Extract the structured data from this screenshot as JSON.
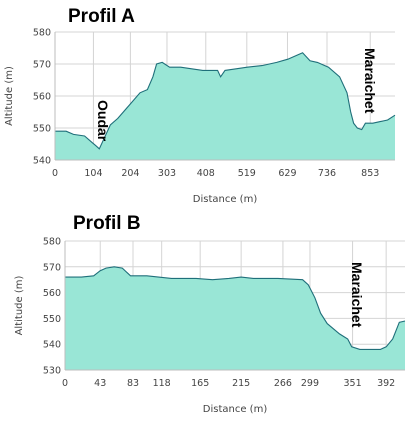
{
  "colors": {
    "fill": "#99e6d6",
    "line": "#1f6f7a",
    "grid": "#d4d4d4"
  },
  "chart_data": [
    {
      "type": "area",
      "title": "Profil A",
      "xlabel": "Distance (m)",
      "ylabel": "Altitude (m)",
      "xlim": [
        0,
        920
      ],
      "ylim": [
        540,
        580
      ],
      "yticks": [
        540,
        550,
        560,
        570,
        580
      ],
      "xticks": [
        0,
        104,
        204,
        303,
        408,
        519,
        629,
        736,
        853
      ],
      "xtick_labels": [
        "0",
        "104",
        "204",
        "303",
        "408",
        "519",
        "629",
        "736",
        "853"
      ],
      "grid": true,
      "annotations": [
        {
          "text": "Oudar",
          "x": 120,
          "y": 555
        },
        {
          "text": "Maraichet",
          "x": 830,
          "y": 568
        }
      ],
      "series": [
        {
          "x": [
            0,
            30,
            50,
            80,
            100,
            110,
            120,
            130,
            150,
            170,
            200,
            230,
            250,
            265,
            275,
            290,
            310,
            340,
            370,
            400,
            430,
            440,
            448,
            460,
            490,
            520,
            560,
            600,
            630,
            660,
            670,
            690,
            710,
            740,
            770,
            790,
            800,
            808,
            818,
            830,
            840,
            860,
            880,
            900,
            920
          ],
          "y": [
            549,
            549,
            548,
            547.5,
            545.5,
            544.5,
            543.5,
            546,
            551,
            553,
            557,
            561,
            562,
            566,
            570,
            570.5,
            569,
            569,
            568.5,
            568,
            568,
            568,
            566,
            568,
            568.5,
            569,
            569.5,
            570.5,
            571.5,
            573,
            573.5,
            571,
            570.5,
            569,
            566,
            561,
            555,
            551.5,
            550,
            549.5,
            551.5,
            551.5,
            552,
            552.5,
            554
          ]
        }
      ]
    },
    {
      "type": "area",
      "title": "Profil B",
      "xlabel": "Distance (m)",
      "ylabel": "Altitude (m)",
      "xlim": [
        0,
        415
      ],
      "ylim": [
        530,
        580
      ],
      "yticks": [
        530,
        540,
        550,
        560,
        570,
        580
      ],
      "xticks": [
        0,
        43,
        83,
        118,
        165,
        215,
        266,
        299,
        351,
        392
      ],
      "xtick_labels": [
        "0",
        "43",
        "83",
        "118",
        "165",
        "215",
        "266",
        "299",
        "351",
        "392"
      ],
      "grid": true,
      "annotations": [
        {
          "text": "Maraichet",
          "x": 370,
          "y": 560
        }
      ],
      "series": [
        {
          "x": [
            0,
            20,
            35,
            43,
            50,
            60,
            70,
            80,
            100,
            130,
            160,
            180,
            200,
            215,
            230,
            260,
            290,
            297,
            305,
            312,
            320,
            335,
            345,
            350,
            360,
            375,
            385,
            392,
            400,
            408,
            415
          ],
          "y": [
            566,
            566,
            566.5,
            568.5,
            569.5,
            570,
            569.5,
            566.5,
            566.5,
            565.5,
            565.5,
            565,
            565.5,
            566,
            565.5,
            565.5,
            565,
            563,
            558,
            552,
            548,
            544,
            542,
            539,
            538,
            538,
            538,
            539,
            542,
            548.5,
            549
          ]
        }
      ]
    }
  ]
}
